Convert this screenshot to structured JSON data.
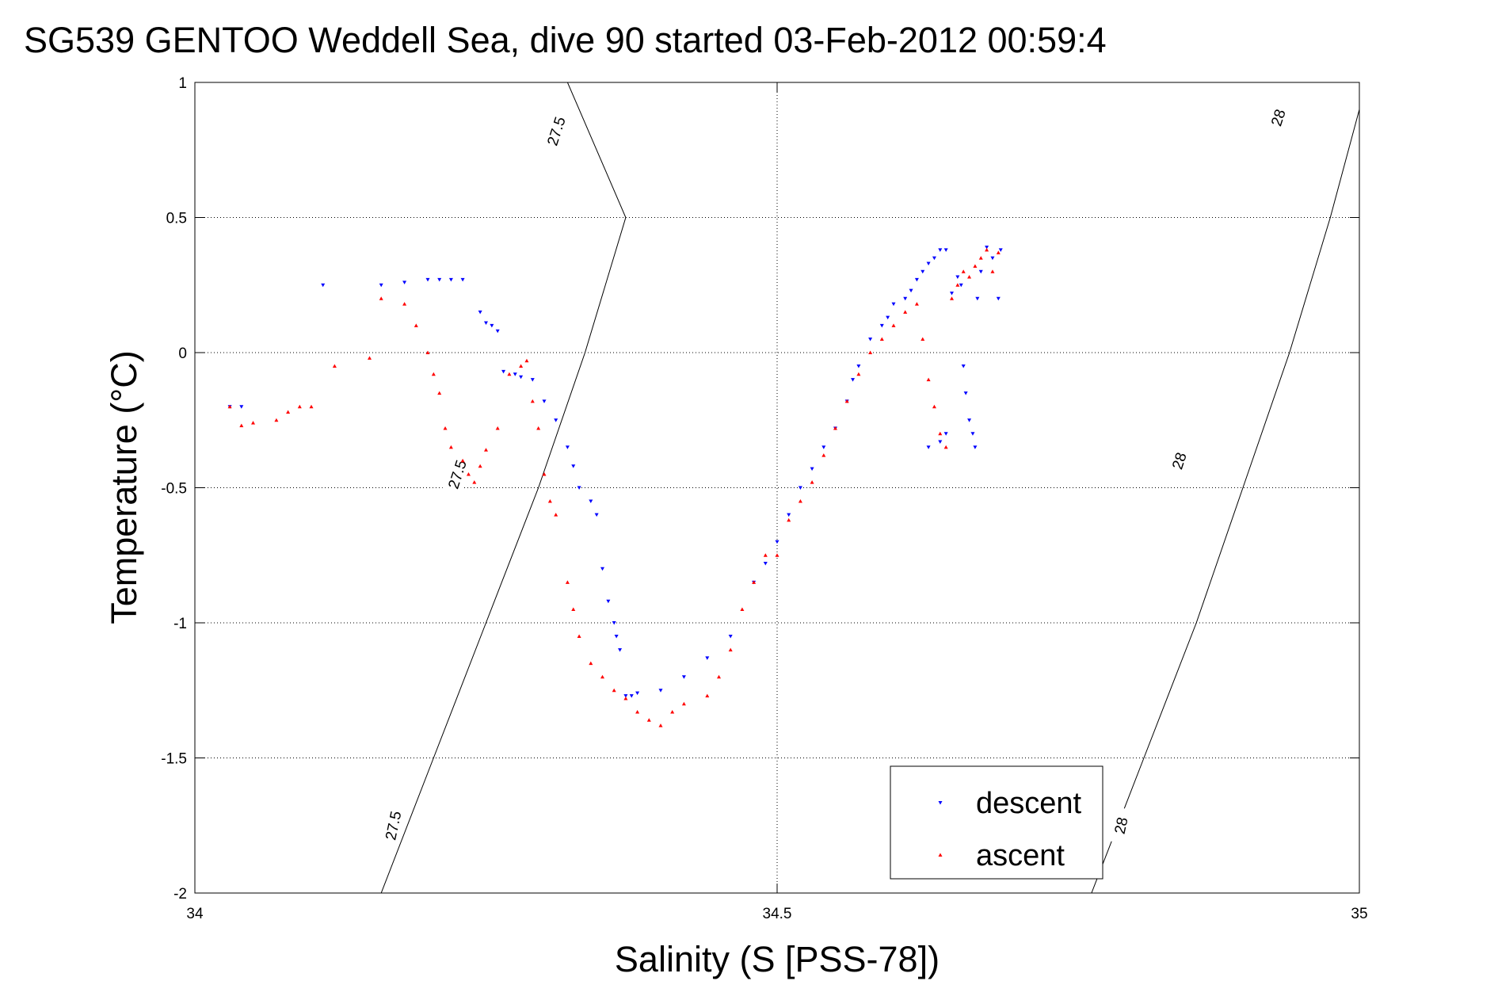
{
  "chart_data": {
    "type": "scatter",
    "title": "SG539 GENTOO Weddell Sea, dive 90 started 03-Feb-2012 00:59:4",
    "xlabel": "Salinity (S [PSS-78])",
    "ylabel": "Temperature (°C)",
    "xlim": [
      34,
      35
    ],
    "ylim": [
      -2,
      1
    ],
    "x_ticks": [
      34,
      34.5,
      35
    ],
    "x_tick_labels": [
      "34",
      "34.5",
      "35"
    ],
    "y_ticks": [
      -2,
      -1.5,
      -1,
      -0.5,
      0,
      0.5,
      1
    ],
    "y_tick_labels": [
      "-2",
      "-1.5",
      "-1",
      "-0.5",
      "0",
      "0.5",
      "1"
    ],
    "grid": true,
    "legend_position": "bottom-right",
    "colors": {
      "descent": "#0000ff",
      "ascent": "#ff0000",
      "contour": "#000000"
    },
    "density_contours": [
      {
        "level_label": "27.5",
        "points": [
          [
            34.16,
            -2.0
          ],
          [
            34.205,
            -1.5
          ],
          [
            34.25,
            -1.0
          ],
          [
            34.295,
            -0.5
          ],
          [
            34.335,
            0.0
          ],
          [
            34.37,
            0.5
          ],
          [
            34.32,
            1.0
          ]
        ]
      },
      {
        "level_label": "28",
        "points": [
          [
            34.77,
            -2.0
          ],
          [
            34.815,
            -1.5
          ],
          [
            34.86,
            -1.0
          ],
          [
            34.9,
            -0.5
          ],
          [
            34.94,
            0.0
          ],
          [
            34.975,
            0.5
          ],
          [
            35.0,
            0.9
          ]
        ]
      }
    ],
    "contour_labels": [
      {
        "text": "27.5",
        "x": 34.31,
        "y": 0.82,
        "rotation": -72
      },
      {
        "text": "27.5",
        "x": 34.225,
        "y": -0.45,
        "rotation": -72
      },
      {
        "text": "27.5",
        "x": 34.17,
        "y": -1.75,
        "rotation": -78
      },
      {
        "text": "28",
        "x": 34.93,
        "y": 0.87,
        "rotation": -72
      },
      {
        "text": "28",
        "x": 34.845,
        "y": -0.4,
        "rotation": -72
      },
      {
        "text": "28",
        "x": 34.795,
        "y": -1.75,
        "rotation": -78
      }
    ],
    "series": [
      {
        "name": "descent",
        "color": "#0000ff",
        "marker": "triangle-down",
        "x": [
          34.03,
          34.04,
          34.11,
          34.16,
          34.18,
          34.2,
          34.21,
          34.22,
          34.23,
          34.245,
          34.25,
          34.255,
          34.26,
          34.265,
          34.275,
          34.28,
          34.29,
          34.3,
          34.31,
          34.32,
          34.325,
          34.33,
          34.34,
          34.345,
          34.35,
          34.355,
          34.36,
          34.362,
          34.365,
          34.37,
          34.375,
          34.38,
          34.4,
          34.42,
          34.44,
          34.46,
          34.48,
          34.49,
          34.5,
          34.51,
          34.52,
          34.53,
          34.54,
          34.55,
          34.56,
          34.565,
          34.57,
          34.58,
          34.59,
          34.595,
          34.6,
          34.61,
          34.615,
          34.62,
          34.625,
          34.63,
          34.635,
          34.64,
          34.645,
          34.65,
          34.655,
          34.658,
          34.66,
          34.662,
          34.665,
          34.668,
          34.67,
          34.672,
          34.675,
          34.68,
          34.685,
          34.69,
          34.692,
          34.63,
          34.64,
          34.645
        ],
        "y": [
          -0.2,
          -0.2,
          0.25,
          0.25,
          0.26,
          0.27,
          0.27,
          0.27,
          0.27,
          0.15,
          0.11,
          0.1,
          0.08,
          -0.07,
          -0.08,
          -0.09,
          -0.1,
          -0.18,
          -0.25,
          -0.35,
          -0.42,
          -0.5,
          -0.55,
          -0.6,
          -0.8,
          -0.92,
          -1.0,
          -1.05,
          -1.1,
          -1.27,
          -1.27,
          -1.26,
          -1.25,
          -1.2,
          -1.13,
          -1.05,
          -0.85,
          -0.78,
          -0.7,
          -0.6,
          -0.5,
          -0.43,
          -0.35,
          -0.28,
          -0.18,
          -0.1,
          -0.05,
          0.05,
          0.1,
          0.13,
          0.18,
          0.2,
          0.23,
          0.27,
          0.3,
          0.33,
          0.35,
          0.38,
          0.38,
          0.22,
          0.28,
          0.25,
          -0.05,
          -0.15,
          -0.25,
          -0.3,
          -0.35,
          0.2,
          0.3,
          0.39,
          0.35,
          0.2,
          0.38,
          -0.35,
          -0.33,
          -0.3
        ]
      },
      {
        "name": "ascent",
        "color": "#ff0000",
        "marker": "triangle-up",
        "x": [
          34.03,
          34.04,
          34.05,
          34.07,
          34.08,
          34.09,
          34.1,
          34.12,
          34.15,
          34.16,
          34.18,
          34.19,
          34.2,
          34.205,
          34.21,
          34.215,
          34.22,
          34.23,
          34.235,
          34.24,
          34.245,
          34.25,
          34.26,
          34.27,
          34.28,
          34.285,
          34.29,
          34.295,
          34.3,
          34.305,
          34.31,
          34.32,
          34.325,
          34.33,
          34.34,
          34.35,
          34.36,
          34.37,
          34.38,
          34.39,
          34.4,
          34.41,
          34.42,
          34.44,
          34.45,
          34.46,
          34.47,
          34.48,
          34.49,
          34.5,
          34.51,
          34.52,
          34.53,
          34.54,
          34.55,
          34.56,
          34.57,
          34.58,
          34.59,
          34.6,
          34.61,
          34.62,
          34.625,
          34.63,
          34.635,
          34.64,
          34.645,
          34.65,
          34.655,
          34.66,
          34.665,
          34.67,
          34.675,
          34.68,
          34.685,
          34.69
        ],
        "y": [
          -0.2,
          -0.27,
          -0.26,
          -0.25,
          -0.22,
          -0.2,
          -0.2,
          -0.05,
          -0.02,
          0.2,
          0.18,
          0.1,
          0.0,
          -0.08,
          -0.15,
          -0.28,
          -0.35,
          -0.4,
          -0.45,
          -0.48,
          -0.42,
          -0.36,
          -0.28,
          -0.08,
          -0.05,
          -0.03,
          -0.18,
          -0.28,
          -0.45,
          -0.55,
          -0.6,
          -0.85,
          -0.95,
          -1.05,
          -1.15,
          -1.2,
          -1.25,
          -1.28,
          -1.33,
          -1.36,
          -1.38,
          -1.33,
          -1.3,
          -1.27,
          -1.2,
          -1.1,
          -0.95,
          -0.85,
          -0.75,
          -0.75,
          -0.62,
          -0.55,
          -0.48,
          -0.38,
          -0.28,
          -0.18,
          -0.08,
          0.0,
          0.05,
          0.1,
          0.15,
          0.18,
          0.05,
          -0.1,
          -0.2,
          -0.3,
          -0.35,
          0.2,
          0.25,
          0.3,
          0.28,
          0.32,
          0.35,
          0.38,
          0.3,
          0.37
        ]
      }
    ]
  }
}
